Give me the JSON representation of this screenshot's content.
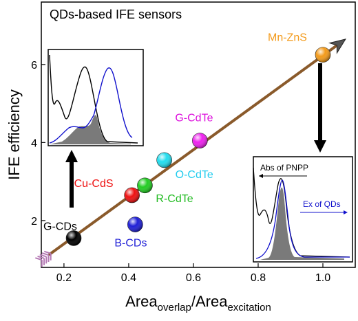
{
  "chart_data": {
    "type": "scatter",
    "title": "QDs-based IFE sensors",
    "xlabel": {
      "main": "Area",
      "sub1": "overlap",
      "slash": "/Area",
      "sub2": "excitation"
    },
    "ylabel": "IFE efficiency",
    "xlim": [
      0.13,
      1.1
    ],
    "ylim": [
      0.8,
      7.6
    ],
    "xticks": [
      0.2,
      0.4,
      0.6,
      0.8,
      1.0
    ],
    "xtick_labels": [
      "0.2",
      "0.4",
      "0.6",
      "0.8",
      "1.0"
    ],
    "yticks": [
      2,
      4,
      6
    ],
    "ytick_labels": [
      "2",
      "4",
      "6"
    ],
    "grid": false,
    "trend_line": {
      "x": [
        0.125,
        1.07
      ],
      "y": [
        0.95,
        6.65
      ]
    },
    "points": [
      {
        "label": "G-CDs",
        "x": 0.23,
        "y": 1.55,
        "color": "#000000",
        "label_color": "#000000"
      },
      {
        "label": "B-CDs",
        "x": 0.42,
        "y": 1.9,
        "color": "#1f1fd6",
        "label_color": "#1f1fd6"
      },
      {
        "label": "Cu-CdS",
        "x": 0.41,
        "y": 2.65,
        "color": "#ee1111",
        "label_color": "#ee1111"
      },
      {
        "label": "R-CdTe",
        "x": 0.45,
        "y": 2.9,
        "color": "#22cc22",
        "label_color": "#22bb22"
      },
      {
        "label": "O-CdTe",
        "x": 0.51,
        "y": 3.55,
        "color": "#22ddee",
        "label_color": "#22ccee"
      },
      {
        "label": "G-CdTe",
        "x": 0.62,
        "y": 4.05,
        "color": "#ee22ee",
        "label_color": "#dd11dd"
      },
      {
        "label": "Mn-ZnS",
        "x": 1.0,
        "y": 6.25,
        "color": "#f39a1a",
        "label_color": "#f39a1a"
      }
    ],
    "inset_right": {
      "legend": [
        "Abs of PNPP",
        "Ex of QDs"
      ]
    }
  }
}
